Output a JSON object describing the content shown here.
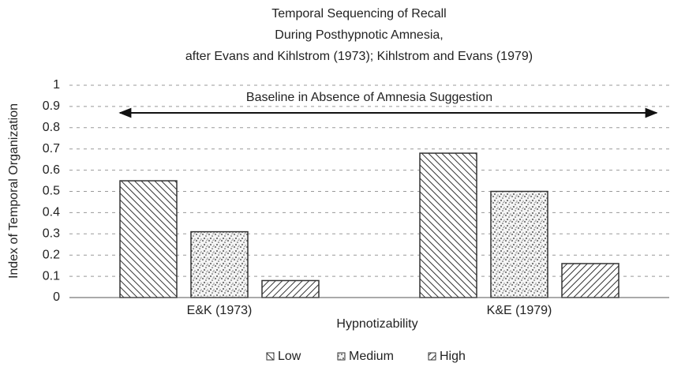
{
  "chart_data": {
    "type": "bar",
    "title": [
      "Temporal Sequencing of Recall",
      "During Posthypnotic Amnesia,",
      "after Evans and Kihlstrom (1973); Kihlstrom and Evans (1979)"
    ],
    "xlabel": "Hypnotizability",
    "ylabel": "Index of Temporal Organization",
    "categories": [
      "E&K (1973)",
      "K&E (1979)"
    ],
    "series": [
      {
        "name": "Low",
        "color": "#333333",
        "pattern": "backslash",
        "values": [
          0.55,
          0.68
        ]
      },
      {
        "name": "Medium",
        "color": "#333333",
        "pattern": "dots",
        "values": [
          0.31,
          0.5
        ]
      },
      {
        "name": "High",
        "color": "#333333",
        "pattern": "slash",
        "values": [
          0.08,
          0.16
        ]
      }
    ],
    "ylim": [
      0,
      1
    ],
    "yticks": [
      0,
      0.1,
      0.2,
      0.3,
      0.4,
      0.5,
      0.6,
      0.7,
      0.8,
      0.9,
      1
    ],
    "grid": true,
    "legend": "bottom",
    "annotation": {
      "text": "Baseline in Absence of Amnesia Suggestion",
      "value": 0.87
    }
  }
}
